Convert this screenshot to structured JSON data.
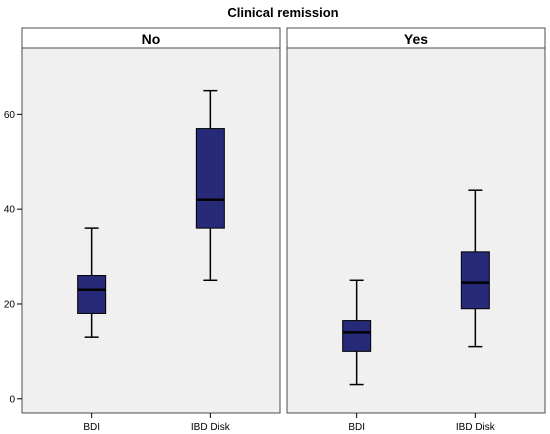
{
  "chart_data": {
    "type": "boxplot",
    "title": "Clinical remission",
    "xlabel": "",
    "ylabel": "",
    "ylim": [
      -3,
      74
    ],
    "yticks": [
      0,
      20,
      40,
      60
    ],
    "categories": [
      "BDI",
      "IBD Disk"
    ],
    "grid": false,
    "colors": {
      "box": "#262a78",
      "panel_bg": "#f0f0f0",
      "frame": "#4d4d4d"
    },
    "panels": [
      {
        "label": "No",
        "boxes": [
          {
            "category": "BDI",
            "min": 13,
            "q1": 18,
            "median": 23,
            "q3": 26,
            "max": 36
          },
          {
            "category": "IBD Disk",
            "min": 25,
            "q1": 36,
            "median": 42,
            "q3": 57,
            "max": 65
          }
        ]
      },
      {
        "label": "Yes",
        "boxes": [
          {
            "category": "BDI",
            "min": 3,
            "q1": 10,
            "median": 14,
            "q3": 16.5,
            "max": 25
          },
          {
            "category": "IBD Disk",
            "min": 11,
            "q1": 19,
            "median": 24.5,
            "q3": 31,
            "max": 44
          }
        ]
      }
    ]
  }
}
